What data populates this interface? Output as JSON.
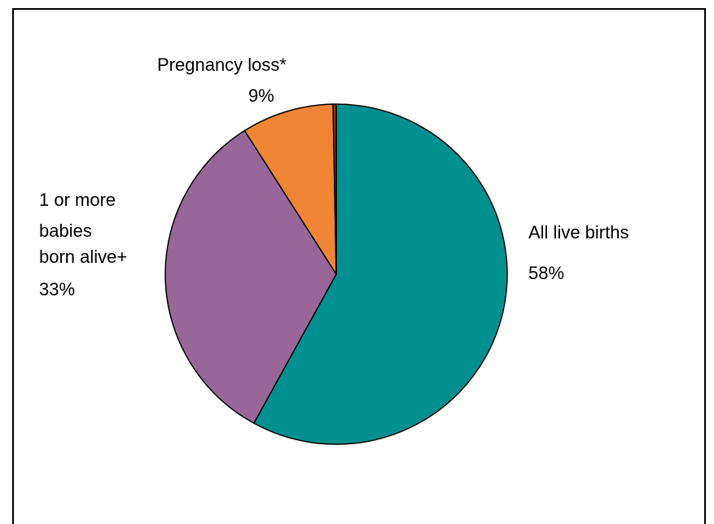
{
  "chart_data": {
    "type": "pie",
    "slices": [
      {
        "label": "All live births",
        "percent_label": "58%",
        "value": 58,
        "color": "#009090"
      },
      {
        "label": "1 or more babies born alive+",
        "label_lines": [
          "1 or more",
          "babies",
          "born alive+"
        ],
        "percent_label": "33%",
        "value": 33,
        "color": "#996699"
      },
      {
        "label": "Pregnancy loss*",
        "percent_label": "9%",
        "value": 8.7,
        "color": "#F08536"
      },
      {
        "label": "",
        "value": 0.3,
        "color": "#8B3A0F"
      }
    ]
  }
}
